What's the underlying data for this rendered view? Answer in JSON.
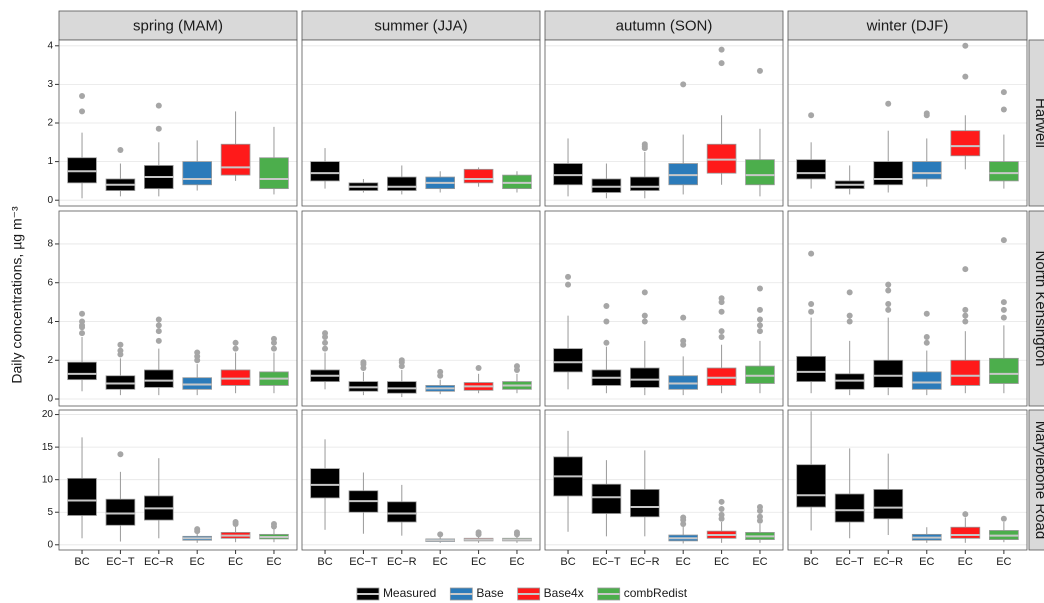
{
  "chart_data": {
    "type": "box",
    "y_label": "Daily concentrations, µg m⁻³",
    "categories": [
      "BC",
      "EC−T",
      "EC−R",
      "EC",
      "EC",
      "EC"
    ],
    "colors": [
      "#000000",
      "#000000",
      "#000000",
      "#2b7bba",
      "#ff1a1a",
      "#4cae4c"
    ],
    "columns": [
      "spring (MAM)",
      "summer (JJA)",
      "autumn (SON)",
      "winter (DJF)"
    ],
    "grid": true,
    "series": [
      {
        "name": "Measured",
        "color": "#000000"
      },
      {
        "name": "Base",
        "color": "#2b7bba"
      },
      {
        "name": "Base4x",
        "color": "#ff1a1a"
      },
      {
        "name": "combRedist",
        "color": "#4cae4c"
      }
    ],
    "rows": [
      {
        "name": "Harwell",
        "ylim": [
          -0.15,
          4.15
        ],
        "yticks": [
          0,
          1,
          2,
          3,
          4
        ],
        "panels": [
          [
            {
              "stats": [
                0.05,
                0.45,
                0.75,
                1.1,
                1.75
              ],
              "fliers": [
                2.3,
                2.7
              ]
            },
            {
              "stats": [
                0.1,
                0.25,
                0.4,
                0.55,
                0.95
              ],
              "fliers": [
                1.3
              ]
            },
            {
              "stats": [
                0.1,
                0.3,
                0.6,
                0.9,
                1.5
              ],
              "fliers": [
                1.85,
                2.45
              ]
            },
            {
              "stats": [
                0.25,
                0.4,
                0.55,
                1.0,
                1.55
              ]
            },
            {
              "stats": [
                0.5,
                0.65,
                0.85,
                1.45,
                2.3
              ]
            },
            {
              "stats": [
                0.15,
                0.3,
                0.55,
                1.1,
                1.9
              ]
            }
          ],
          [
            {
              "stats": [
                0.3,
                0.5,
                0.7,
                1.0,
                1.35
              ]
            },
            {
              "stats": [
                0.2,
                0.25,
                0.35,
                0.45,
                0.55
              ]
            },
            {
              "stats": [
                0.15,
                0.25,
                0.35,
                0.6,
                0.9
              ]
            },
            {
              "stats": [
                0.2,
                0.3,
                0.45,
                0.6,
                0.75
              ]
            },
            {
              "stats": [
                0.35,
                0.45,
                0.55,
                0.8,
                0.85
              ]
            },
            {
              "stats": [
                0.2,
                0.3,
                0.45,
                0.65,
                0.75
              ]
            }
          ],
          [
            {
              "stats": [
                0.1,
                0.4,
                0.65,
                0.95,
                1.6
              ]
            },
            {
              "stats": [
                0.05,
                0.2,
                0.35,
                0.55,
                0.95
              ]
            },
            {
              "stats": [
                0.05,
                0.25,
                0.35,
                0.6,
                1.25
              ],
              "fliers": [
                1.35,
                1.4,
                1.45
              ]
            },
            {
              "stats": [
                0.15,
                0.4,
                0.65,
                0.95,
                1.7
              ],
              "fliers": [
                3.0
              ]
            },
            {
              "stats": [
                0.4,
                0.7,
                1.05,
                1.45,
                2.2
              ],
              "fliers": [
                3.55,
                3.9
              ]
            },
            {
              "stats": [
                0.1,
                0.4,
                0.65,
                1.05,
                1.85
              ],
              "fliers": [
                3.35
              ]
            }
          ],
          [
            {
              "stats": [
                0.3,
                0.55,
                0.7,
                1.05,
                1.5
              ],
              "fliers": [
                2.2
              ]
            },
            {
              "stats": [
                0.15,
                0.3,
                0.4,
                0.5,
                0.9
              ]
            },
            {
              "stats": [
                0.2,
                0.4,
                0.55,
                1.0,
                1.8
              ],
              "fliers": [
                2.5
              ]
            },
            {
              "stats": [
                0.35,
                0.55,
                0.7,
                1.0,
                1.6
              ],
              "fliers": [
                2.2,
                2.25
              ]
            },
            {
              "stats": [
                0.8,
                1.15,
                1.4,
                1.8,
                2.2
              ],
              "fliers": [
                3.2,
                4.0
              ]
            },
            {
              "stats": [
                0.3,
                0.5,
                0.7,
                1.0,
                1.7
              ],
              "fliers": [
                2.35,
                2.8
              ]
            }
          ]
        ]
      },
      {
        "name": "North Kensington",
        "ylim": [
          -0.36,
          9.7
        ],
        "yticks": [
          0,
          2,
          4,
          6,
          8
        ],
        "panels": [
          [
            {
              "stats": [
                0.4,
                1.0,
                1.3,
                1.9,
                3.2
              ],
              "fliers": [
                3.4,
                3.7,
                3.8,
                4.0,
                4.4
              ]
            },
            {
              "stats": [
                0.2,
                0.5,
                0.8,
                1.2,
                2.1
              ],
              "fliers": [
                2.3,
                2.5,
                2.8
              ]
            },
            {
              "stats": [
                0.2,
                0.6,
                0.95,
                1.5,
                2.6
              ],
              "fliers": [
                3.0,
                3.5,
                3.8,
                4.1
              ]
            },
            {
              "stats": [
                0.2,
                0.5,
                0.75,
                1.1,
                1.8
              ],
              "fliers": [
                2.0,
                2.2,
                2.4
              ]
            },
            {
              "stats": [
                0.3,
                0.7,
                1.05,
                1.5,
                2.4
              ],
              "fliers": [
                2.6,
                2.9
              ]
            },
            {
              "stats": [
                0.3,
                0.7,
                1.05,
                1.4,
                2.4
              ],
              "fliers": [
                2.6,
                2.9,
                3.1
              ]
            }
          ],
          [
            {
              "stats": [
                0.5,
                0.9,
                1.2,
                1.5,
                2.4
              ],
              "fliers": [
                2.6,
                2.9,
                3.2,
                3.4
              ]
            },
            {
              "stats": [
                0.2,
                0.4,
                0.6,
                0.9,
                1.4
              ],
              "fliers": [
                1.6,
                1.8,
                1.9
              ]
            },
            {
              "stats": [
                0.1,
                0.3,
                0.55,
                0.9,
                1.5
              ],
              "fliers": [
                1.7,
                1.9,
                2.0
              ]
            },
            {
              "stats": [
                0.25,
                0.4,
                0.55,
                0.7,
                1.0
              ],
              "fliers": [
                1.2,
                1.4
              ]
            },
            {
              "stats": [
                0.3,
                0.45,
                0.65,
                0.85,
                1.3
              ],
              "fliers": [
                1.6
              ]
            },
            {
              "stats": [
                0.3,
                0.5,
                0.7,
                0.9,
                1.3
              ],
              "fliers": [
                1.5,
                1.7
              ]
            }
          ],
          [
            {
              "stats": [
                0.5,
                1.4,
                1.9,
                2.6,
                4.3
              ],
              "fliers": [
                5.9,
                6.3
              ]
            },
            {
              "stats": [
                0.3,
                0.7,
                1.1,
                1.5,
                2.7
              ],
              "fliers": [
                2.9,
                4.0,
                4.8
              ]
            },
            {
              "stats": [
                0.2,
                0.6,
                1.0,
                1.6,
                3.0
              ],
              "fliers": [
                4.0,
                4.3,
                5.5
              ]
            },
            {
              "stats": [
                0.2,
                0.5,
                0.8,
                1.2,
                2.2
              ],
              "fliers": [
                2.8,
                3.0,
                4.2
              ]
            },
            {
              "stats": [
                0.3,
                0.7,
                1.1,
                1.6,
                2.8
              ],
              "fliers": [
                3.2,
                3.5,
                4.5,
                5.0,
                5.2
              ]
            },
            {
              "stats": [
                0.3,
                0.8,
                1.2,
                1.7,
                3.0
              ],
              "fliers": [
                3.5,
                3.8,
                4.1,
                4.6,
                5.7
              ]
            }
          ],
          [
            {
              "stats": [
                0.3,
                0.9,
                1.4,
                2.2,
                4.2
              ],
              "fliers": [
                4.5,
                4.9,
                7.5
              ]
            },
            {
              "stats": [
                0.2,
                0.5,
                0.95,
                1.3,
                3.0
              ],
              "fliers": [
                4.0,
                4.3,
                5.5
              ]
            },
            {
              "stats": [
                0.2,
                0.6,
                1.2,
                2.0,
                4.2
              ],
              "fliers": [
                4.6,
                4.9,
                5.6,
                5.9
              ]
            },
            {
              "stats": [
                0.2,
                0.5,
                0.85,
                1.4,
                2.5
              ],
              "fliers": [
                2.9,
                3.2,
                4.4
              ]
            },
            {
              "stats": [
                0.3,
                0.7,
                1.2,
                2.0,
                3.5
              ],
              "fliers": [
                4.0,
                4.3,
                4.6,
                6.7
              ]
            },
            {
              "stats": [
                0.3,
                0.8,
                1.3,
                2.1,
                3.8
              ],
              "fliers": [
                4.2,
                4.6,
                5.0,
                8.2
              ]
            }
          ]
        ]
      },
      {
        "name": "Marylebone Road",
        "ylim": [
          -0.8,
          20.7
        ],
        "yticks": [
          0,
          5,
          10,
          15,
          20
        ],
        "panels": [
          [
            {
              "stats": [
                1.0,
                4.5,
                6.8,
                10.2,
                16.5
              ]
            },
            {
              "stats": [
                0.5,
                3.0,
                4.8,
                7.0,
                11.2
              ],
              "fliers": [
                13.9
              ]
            },
            {
              "stats": [
                1.0,
                3.8,
                5.6,
                7.5,
                13.3
              ]
            },
            {
              "stats": [
                0.3,
                0.7,
                1.0,
                1.3,
                1.9
              ],
              "fliers": [
                2.1,
                2.4
              ]
            },
            {
              "stats": [
                0.4,
                1.0,
                1.4,
                1.9,
                2.9
              ],
              "fliers": [
                3.2,
                3.5
              ]
            },
            {
              "stats": [
                0.4,
                0.9,
                1.2,
                1.6,
                2.6
              ],
              "fliers": [
                2.8,
                3.2
              ]
            }
          ],
          [
            {
              "stats": [
                2.3,
                7.2,
                9.2,
                11.7,
                16.2
              ]
            },
            {
              "stats": [
                1.7,
                5.0,
                6.7,
                8.3,
                11.1
              ]
            },
            {
              "stats": [
                1.4,
                3.5,
                4.8,
                6.6,
                9.2
              ]
            },
            {
              "stats": [
                0.3,
                0.5,
                0.7,
                0.9,
                1.3
              ],
              "fliers": [
                1.6
              ]
            },
            {
              "stats": [
                0.3,
                0.6,
                0.8,
                1.0,
                1.4
              ],
              "fliers": [
                1.6,
                1.9
              ]
            },
            {
              "stats": [
                0.3,
                0.6,
                0.8,
                1.0,
                1.4
              ],
              "fliers": [
                1.6,
                1.9
              ]
            }
          ],
          [
            {
              "stats": [
                2.0,
                7.5,
                10.5,
                13.5,
                17.5
              ]
            },
            {
              "stats": [
                1.3,
                4.8,
                7.3,
                9.3,
                13.0
              ]
            },
            {
              "stats": [
                1.3,
                4.3,
                5.8,
                8.5,
                14.5
              ]
            },
            {
              "stats": [
                0.2,
                0.6,
                1.0,
                1.5,
                2.8
              ],
              "fliers": [
                3.2,
                3.8,
                4.2
              ]
            },
            {
              "stats": [
                0.3,
                1.0,
                1.5,
                2.1,
                3.5
              ],
              "fliers": [
                4.0,
                4.6,
                5.5,
                6.6
              ]
            },
            {
              "stats": [
                0.3,
                0.8,
                1.3,
                1.9,
                3.2
              ],
              "fliers": [
                3.7,
                4.3,
                5.2,
                5.8
              ]
            }
          ],
          [
            {
              "stats": [
                2.2,
                5.8,
                7.6,
                12.3,
                20.5
              ]
            },
            {
              "stats": [
                1.0,
                3.5,
                5.3,
                7.8,
                14.8
              ]
            },
            {
              "stats": [
                1.5,
                4.0,
                5.7,
                8.5,
                14.0
              ]
            },
            {
              "stats": [
                0.3,
                0.7,
                1.1,
                1.6,
                2.7
              ]
            },
            {
              "stats": [
                0.3,
                1.0,
                1.5,
                2.7,
                4.2
              ],
              "fliers": [
                4.7
              ]
            },
            {
              "stats": [
                0.4,
                0.8,
                1.4,
                2.2,
                3.5
              ],
              "fliers": [
                4.0
              ]
            }
          ]
        ]
      }
    ]
  }
}
